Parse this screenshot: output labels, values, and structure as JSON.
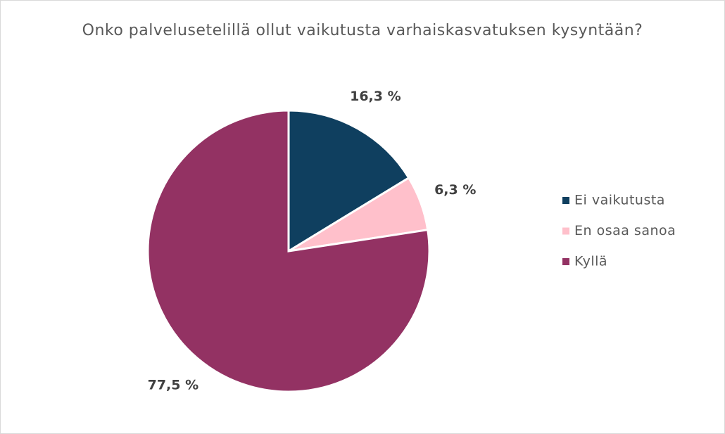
{
  "chart_data": {
    "type": "pie",
    "title": "Onko palvelusetelillä ollut vaikutusta varhaiskasvatuksen kysyntään?",
    "categories": [
      "Ei vaikutusta",
      "En osaa sanoa",
      "Kyllä"
    ],
    "values": [
      16.3,
      6.3,
      77.5
    ],
    "value_labels": [
      "16,3 %",
      "6,3 %",
      "77,5 %"
    ],
    "colors": [
      "#0f3f5f",
      "#ffc0cb",
      "#933263"
    ],
    "legend": "right"
  }
}
